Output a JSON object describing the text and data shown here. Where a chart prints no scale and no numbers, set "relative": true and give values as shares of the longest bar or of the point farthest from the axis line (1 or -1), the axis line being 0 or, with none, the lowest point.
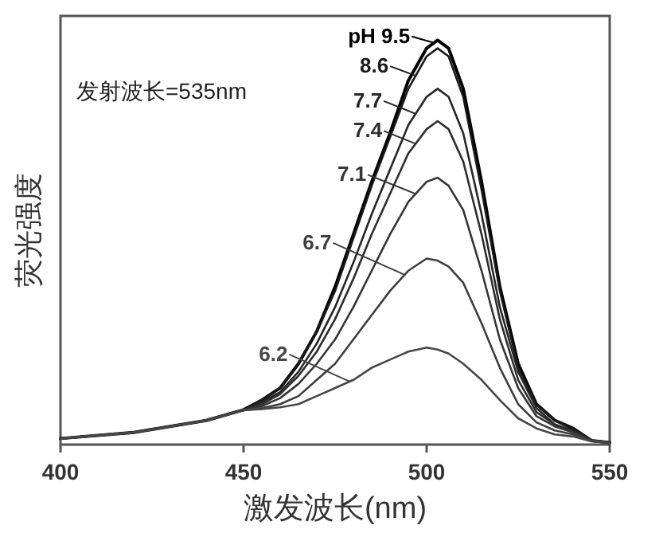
{
  "chart_data": {
    "type": "line",
    "relative": true,
    "xlabel": "激发波长(nm)",
    "ylabel": "荧光强度",
    "annotations": [
      "发射波长=535nm"
    ],
    "x": [
      400,
      420,
      440,
      450,
      455,
      460,
      465,
      470,
      475,
      480,
      485,
      490,
      495,
      500,
      503,
      506,
      510,
      515,
      520,
      525,
      530,
      535,
      540,
      545,
      550
    ],
    "xlim": [
      400,
      550
    ],
    "xticks": [
      400,
      450,
      500,
      550
    ],
    "grid": false,
    "legend": "top",
    "marker": "none",
    "line_style": "solid",
    "series": [
      {
        "name": "pH 9.5",
        "color": "#000000",
        "values": [
          0.015,
          0.03,
          0.06,
          0.086,
          0.11,
          0.14,
          0.2,
          0.28,
          0.39,
          0.52,
          0.65,
          0.77,
          0.9,
          0.98,
          1.0,
          0.98,
          0.88,
          0.65,
          0.39,
          0.2,
          0.1,
          0.06,
          0.04,
          0.01,
          0.005
        ]
      },
      {
        "name": "8.6",
        "color": "#1a1a1a",
        "values": [
          0.015,
          0.03,
          0.06,
          0.086,
          0.11,
          0.14,
          0.2,
          0.28,
          0.38,
          0.51,
          0.64,
          0.76,
          0.88,
          0.96,
          0.98,
          0.96,
          0.86,
          0.63,
          0.38,
          0.19,
          0.1,
          0.06,
          0.04,
          0.01,
          0.005
        ]
      },
      {
        "name": "7.7",
        "color": "#262626",
        "values": [
          0.015,
          0.03,
          0.06,
          0.085,
          0.105,
          0.13,
          0.18,
          0.25,
          0.34,
          0.45,
          0.57,
          0.68,
          0.79,
          0.86,
          0.88,
          0.86,
          0.77,
          0.57,
          0.34,
          0.18,
          0.09,
          0.05,
          0.035,
          0.01,
          0.005
        ]
      },
      {
        "name": "7.4",
        "color": "#2e2e2e",
        "values": [
          0.015,
          0.03,
          0.06,
          0.085,
          0.1,
          0.125,
          0.17,
          0.23,
          0.31,
          0.41,
          0.52,
          0.62,
          0.72,
          0.78,
          0.8,
          0.78,
          0.7,
          0.52,
          0.31,
          0.16,
          0.08,
          0.05,
          0.03,
          0.01,
          0.005
        ]
      },
      {
        "name": "7.1",
        "color": "#363636",
        "values": [
          0.015,
          0.03,
          0.06,
          0.085,
          0.095,
          0.115,
          0.15,
          0.2,
          0.26,
          0.34,
          0.43,
          0.52,
          0.6,
          0.65,
          0.66,
          0.64,
          0.58,
          0.43,
          0.26,
          0.14,
          0.07,
          0.045,
          0.03,
          0.01,
          0.005
        ]
      },
      {
        "name": "6.7",
        "color": "#3e3e3e",
        "values": [
          0.015,
          0.03,
          0.06,
          0.085,
          0.09,
          0.1,
          0.12,
          0.16,
          0.2,
          0.26,
          0.32,
          0.38,
          0.43,
          0.46,
          0.455,
          0.44,
          0.4,
          0.3,
          0.19,
          0.1,
          0.055,
          0.035,
          0.025,
          0.01,
          0.005
        ]
      },
      {
        "name": "6.2",
        "color": "#474747",
        "values": [
          0.015,
          0.03,
          0.06,
          0.085,
          0.088,
          0.092,
          0.1,
          0.12,
          0.14,
          0.16,
          0.19,
          0.21,
          0.23,
          0.24,
          0.235,
          0.225,
          0.2,
          0.16,
          0.11,
          0.065,
          0.04,
          0.025,
          0.02,
          0.008,
          0.004
        ]
      }
    ]
  }
}
